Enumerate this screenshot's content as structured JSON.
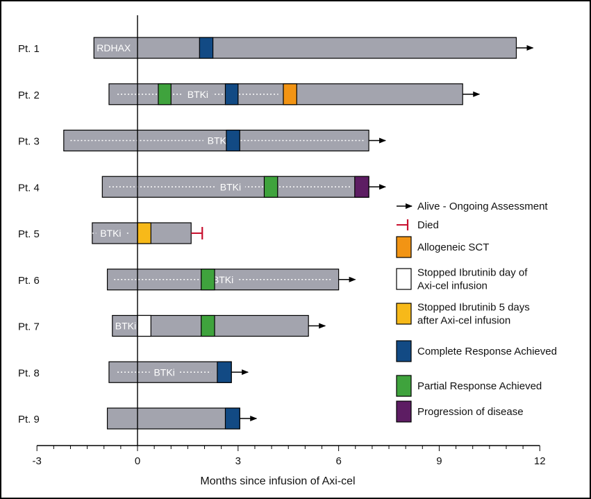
{
  "chart_data": {
    "type": "swimmer",
    "title": "",
    "xlabel": "Months since infusion of Axi-cel",
    "ylabel": "",
    "xlim": [
      -3,
      12
    ],
    "xticks": [
      -3,
      0,
      3,
      6,
      9,
      12
    ],
    "colors": {
      "bar": "#a3a4ae",
      "complete_response": "#124a84",
      "partial_response": "#3fa33d",
      "progression": "#5d1d63",
      "allogeneic_sct": "#f29414",
      "stopped_day_of": "#ffffff",
      "stopped_5_days": "#f7b919",
      "died": "#c8102e"
    },
    "patients": [
      {
        "label": "Pt. 1",
        "start": -1.3,
        "end": 11.3,
        "status": "alive",
        "bridging": {
          "label": "RDHAX",
          "start": null,
          "end": null
        },
        "events": [
          {
            "type": "complete_response",
            "start": 1.85,
            "end": 2.25
          }
        ]
      },
      {
        "label": "Pt. 2",
        "start": -0.85,
        "end": 9.7,
        "status": "alive",
        "bridging": {
          "label": "BTKi",
          "start": -0.6,
          "end": 4.2
        },
        "events": [
          {
            "type": "partial_response",
            "start": 0.62,
            "end": 1.0
          },
          {
            "type": "complete_response",
            "start": 2.62,
            "end": 3.0
          },
          {
            "type": "allogeneic_sct",
            "start": 4.35,
            "end": 4.75
          }
        ]
      },
      {
        "label": "Pt. 3",
        "start": -2.2,
        "end": 6.9,
        "status": "alive",
        "bridging": {
          "label": "BTKi",
          "start": -2.0,
          "end": 6.8
        },
        "events": [
          {
            "type": "complete_response",
            "start": 2.65,
            "end": 3.05
          }
        ]
      },
      {
        "label": "Pt. 4",
        "start": -1.05,
        "end": 6.9,
        "status": "alive",
        "bridging": {
          "label": "BTKi",
          "start": -0.85,
          "end": 6.4
        },
        "events": [
          {
            "type": "partial_response",
            "start": 3.78,
            "end": 4.18
          },
          {
            "type": "progression",
            "start": 6.48,
            "end": 6.9
          }
        ]
      },
      {
        "label": "Pt. 5",
        "start": -1.35,
        "end": 1.6,
        "status": "died",
        "bridging": {
          "label": "BTKi",
          "start": -1.35,
          "end": -0.25
        },
        "events": [
          {
            "type": "stopped_5_days",
            "start": 0.0,
            "end": 0.4
          }
        ]
      },
      {
        "label": "Pt. 6",
        "start": -0.9,
        "end": 6.0,
        "status": "alive",
        "bridging": {
          "label": "BTKi",
          "start": -0.7,
          "end": 5.8
        },
        "events": [
          {
            "type": "partial_response",
            "start": 1.9,
            "end": 2.3
          }
        ]
      },
      {
        "label": "Pt. 7",
        "start": -0.75,
        "end": 5.1,
        "status": "alive",
        "bridging": {
          "label": "BTKi",
          "start": null,
          "end": null
        },
        "events": [
          {
            "type": "stopped_day_of",
            "start": 0.0,
            "end": 0.4
          },
          {
            "type": "partial_response",
            "start": 1.9,
            "end": 2.3
          }
        ]
      },
      {
        "label": "Pt. 8",
        "start": -0.85,
        "end": 2.8,
        "status": "alive",
        "bridging": {
          "label": "BTKi",
          "start": -0.6,
          "end": 2.2
        },
        "events": [
          {
            "type": "complete_response",
            "start": 2.38,
            "end": 2.8
          }
        ]
      },
      {
        "label": "Pt. 9",
        "start": -0.9,
        "end": 3.05,
        "status": "alive",
        "bridging": null,
        "events": [
          {
            "type": "complete_response",
            "start": 2.62,
            "end": 3.05
          }
        ]
      }
    ],
    "legend": [
      {
        "type": "alive",
        "marker": "arrow",
        "label": "Alive - Ongoing Assessment"
      },
      {
        "type": "died",
        "marker": "tee",
        "label": "Died"
      },
      {
        "type": "allogeneic_sct",
        "marker": "box",
        "label": "Allogeneic SCT"
      },
      {
        "type": "stopped_day_of",
        "marker": "box",
        "label": "Stopped Ibrutinib day of Axi-cel infusion"
      },
      {
        "type": "stopped_5_days",
        "marker": "box",
        "label": "Stopped Ibrutinib 5 days after Axi-cel infusion"
      },
      {
        "type": "complete_response",
        "marker": "box",
        "label": "Complete Response Achieved"
      },
      {
        "type": "partial_response",
        "marker": "box",
        "label": "Partial Response Achieved"
      },
      {
        "type": "progression",
        "marker": "box",
        "label": "Progression of disease"
      }
    ],
    "legend_position": "right"
  }
}
